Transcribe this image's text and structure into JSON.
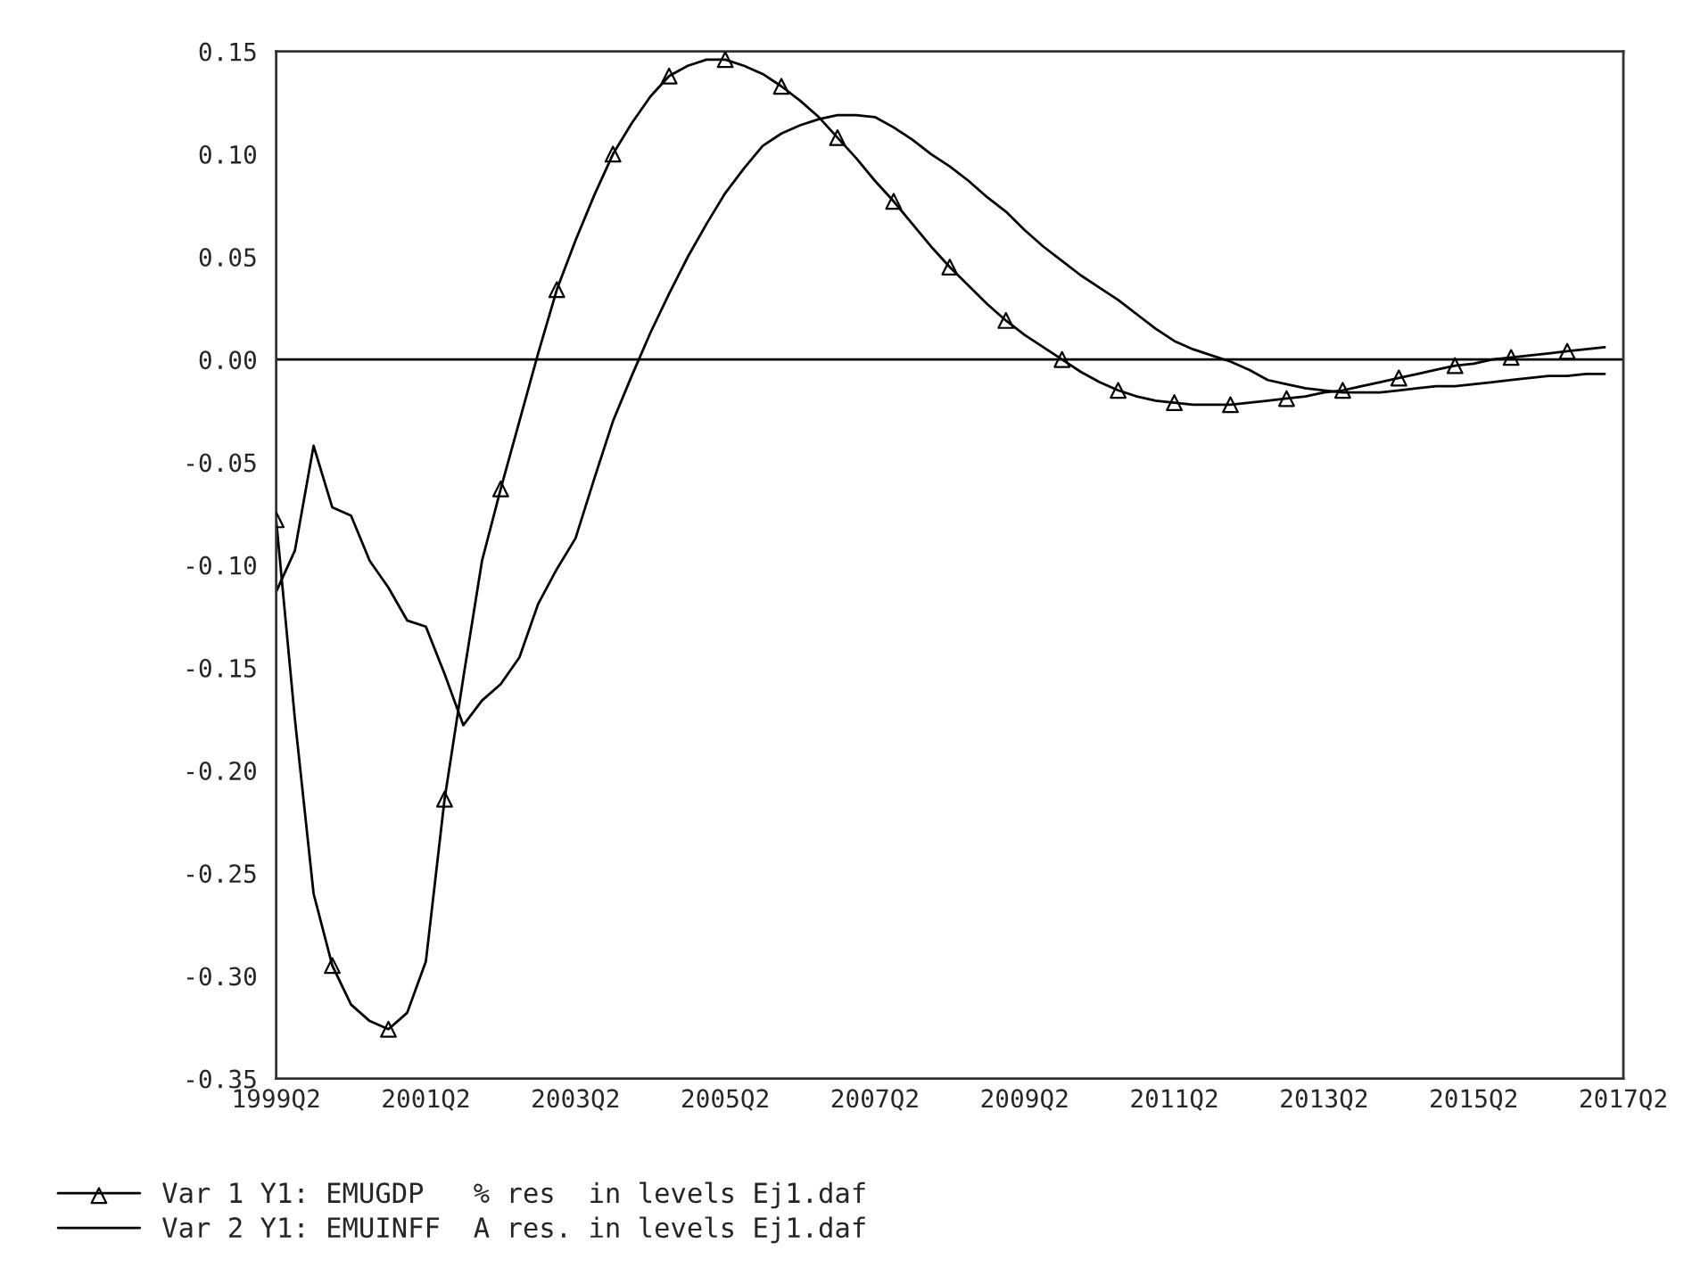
{
  "chart_data": {
    "type": "line",
    "categories": [
      "1999Q2",
      null,
      null,
      null,
      null,
      null,
      null,
      null,
      "2001Q2",
      null,
      null,
      null,
      null,
      null,
      null,
      null,
      "2003Q2",
      null,
      null,
      null,
      null,
      null,
      null,
      null,
      "2005Q2",
      null,
      null,
      null,
      null,
      null,
      null,
      null,
      "2007Q2",
      null,
      null,
      null,
      null,
      null,
      null,
      null,
      "2009Q2",
      null,
      null,
      null,
      null,
      null,
      null,
      null,
      "2011Q2",
      null,
      null,
      null,
      null,
      null,
      null,
      null,
      "2013Q2",
      null,
      null,
      null,
      null,
      null,
      null,
      null,
      "2015Q2",
      null,
      null,
      null,
      null,
      null,
      null,
      null,
      "2017Q2"
    ],
    "series": [
      {
        "name": "Var 1 Y1: EMUGDP   % res  in levels Ej1.daf",
        "color": "#000000",
        "values": [
          -0.078,
          -0.175,
          -0.26,
          -0.295,
          -0.314,
          -0.322,
          -0.326,
          -0.318,
          -0.293,
          -0.214,
          -0.155,
          -0.098,
          -0.063,
          -0.03,
          0.003,
          0.034,
          0.058,
          0.08,
          0.1,
          0.115,
          0.128,
          0.138,
          0.143,
          0.146,
          0.146,
          0.143,
          0.139,
          0.133,
          0.126,
          0.118,
          0.108,
          0.098,
          0.087,
          0.077,
          0.066,
          0.055,
          0.045,
          0.036,
          0.027,
          0.019,
          0.012,
          0.006,
          0.0,
          -0.006,
          -0.011,
          -0.015,
          -0.018,
          -0.02,
          -0.021,
          -0.022,
          -0.022,
          -0.022,
          -0.021,
          -0.02,
          -0.019,
          -0.018,
          -0.016,
          -0.015,
          -0.013,
          -0.011,
          -0.009,
          -0.007,
          -0.005,
          -0.003,
          -0.002,
          0.0,
          0.001,
          0.002,
          0.003,
          0.004,
          0.005,
          0.006,
          null
        ]
      },
      {
        "type": "scatter",
        "color": "#000000",
        "marker": "triangle",
        "values": [
          -0.078,
          null,
          null,
          -0.295,
          null,
          null,
          -0.326,
          null,
          null,
          -0.214,
          null,
          null,
          -0.063,
          null,
          null,
          0.034,
          null,
          null,
          0.1,
          null,
          null,
          0.138,
          null,
          null,
          0.146,
          null,
          null,
          0.133,
          null,
          null,
          0.108,
          null,
          null,
          0.077,
          null,
          null,
          0.045,
          null,
          null,
          0.019,
          null,
          null,
          0.0,
          null,
          null,
          -0.015,
          null,
          null,
          -0.021,
          null,
          null,
          -0.022,
          null,
          null,
          -0.019,
          null,
          null,
          -0.015,
          null,
          null,
          -0.009,
          null,
          null,
          -0.003,
          null,
          null,
          0.001,
          null,
          null,
          0.004,
          null,
          null,
          null
        ]
      },
      {
        "name": "Var 2 Y1: EMUINFF  A res. in levels Ej1.daf",
        "color": "#000000",
        "values": [
          -0.113,
          -0.093,
          -0.042,
          -0.072,
          -0.076,
          -0.098,
          -0.111,
          -0.127,
          -0.13,
          -0.153,
          -0.178,
          -0.166,
          -0.158,
          -0.145,
          -0.119,
          -0.102,
          -0.087,
          -0.058,
          -0.03,
          -0.008,
          0.013,
          0.032,
          0.05,
          0.066,
          0.081,
          0.093,
          0.104,
          0.11,
          0.114,
          0.117,
          0.119,
          0.119,
          0.118,
          0.113,
          0.107,
          0.1,
          0.094,
          0.087,
          0.079,
          0.072,
          0.063,
          0.055,
          0.048,
          0.041,
          0.035,
          0.029,
          0.022,
          0.015,
          0.009,
          0.005,
          0.002,
          -0.001,
          -0.005,
          -0.01,
          -0.012,
          -0.014,
          -0.015,
          -0.016,
          -0.016,
          -0.016,
          -0.015,
          -0.014,
          -0.013,
          -0.013,
          -0.012,
          -0.011,
          -0.01,
          -0.009,
          -0.008,
          -0.008,
          -0.007,
          -0.007,
          null
        ]
      }
    ],
    "ylim": [
      -0.35,
      0.15
    ],
    "yticks": [
      {
        "value": 0.15,
        "label": "0.15"
      },
      {
        "value": 0.1,
        "label": "0.10"
      },
      {
        "value": 0.05,
        "label": "0.05"
      },
      {
        "value": 0.0,
        "label": "0.00"
      },
      {
        "value": -0.05,
        "label": "-0.05"
      },
      {
        "value": -0.1,
        "label": "-0.10"
      },
      {
        "value": -0.15,
        "label": "-0.15"
      },
      {
        "value": -0.2,
        "label": "-0.20"
      },
      {
        "value": -0.25,
        "label": "-0.25"
      },
      {
        "value": -0.3,
        "label": "-0.30"
      },
      {
        "value": -0.35,
        "label": "-0.35"
      }
    ],
    "ref_lines": [
      {
        "axis": "y",
        "value": 0,
        "color": "#000000"
      }
    ],
    "legend": "bottom left",
    "line_style": "solid"
  }
}
